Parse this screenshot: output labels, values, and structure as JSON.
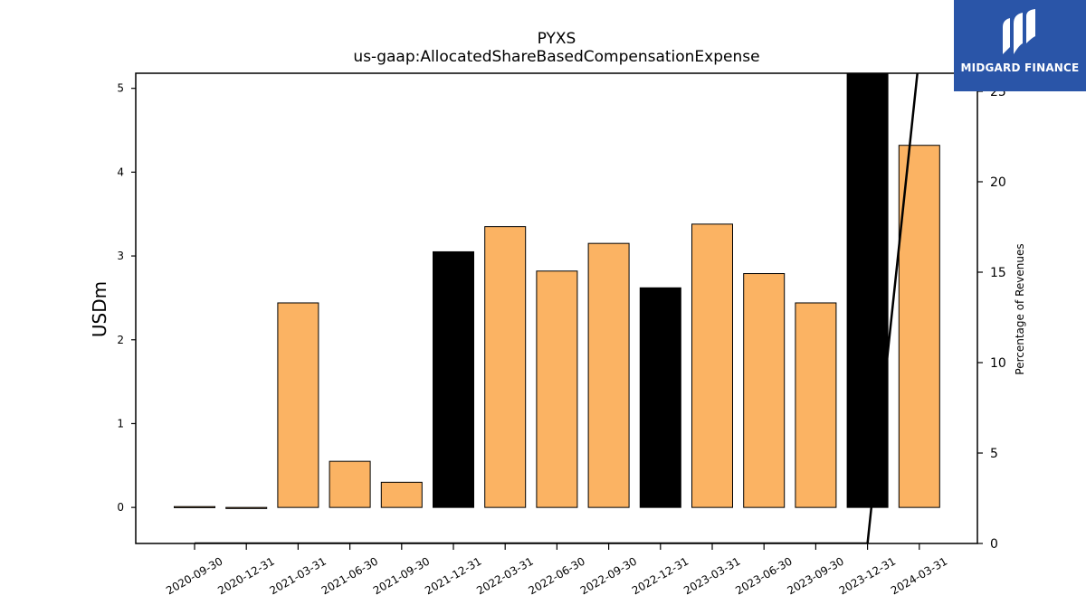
{
  "chart_data": {
    "type": "bar",
    "title": "PYXS",
    "subtitle": "us-gaap:AllocatedShareBasedCompensationExpense",
    "ylabel": "USDm",
    "y2label": "Percentage of Revenues",
    "categories": [
      "2020-09-30",
      "2020-12-31",
      "2021-03-31",
      "2021-06-30",
      "2021-09-30",
      "2021-12-31",
      "2022-03-31",
      "2022-06-30",
      "2022-09-30",
      "2022-12-31",
      "2023-03-31",
      "2023-06-30",
      "2023-09-30",
      "2023-12-31",
      "2024-03-31"
    ],
    "values": [
      0.01,
      -0.01,
      2.44,
      0.55,
      0.3,
      3.05,
      3.35,
      2.82,
      3.15,
      2.62,
      3.38,
      2.79,
      2.44,
      5.18,
      4.32
    ],
    "bar_colors": [
      "#fbb363",
      "#fbb363",
      "#fbb363",
      "#fbb363",
      "#fbb363",
      "#000000",
      "#fbb363",
      "#fbb363",
      "#fbb363",
      "#000000",
      "#fbb363",
      "#fbb363",
      "#fbb363",
      "#000000",
      "#fbb363"
    ],
    "ylim": [
      -0.43,
      5.18
    ],
    "yticks": [
      0,
      1,
      2,
      3,
      4,
      5
    ],
    "y2lim": [
      0,
      26
    ],
    "y2ticks": [
      0,
      5,
      10,
      15,
      20,
      25
    ],
    "secondary_series": {
      "type": "line",
      "color": "#000000",
      "values": [
        0,
        0,
        0,
        0,
        0,
        0,
        0,
        0,
        0,
        0,
        0,
        0,
        0,
        0,
        27
      ]
    },
    "grid": false
  },
  "logo": {
    "text": "MIDGARD FINANCE",
    "color": "#2a55a8"
  }
}
